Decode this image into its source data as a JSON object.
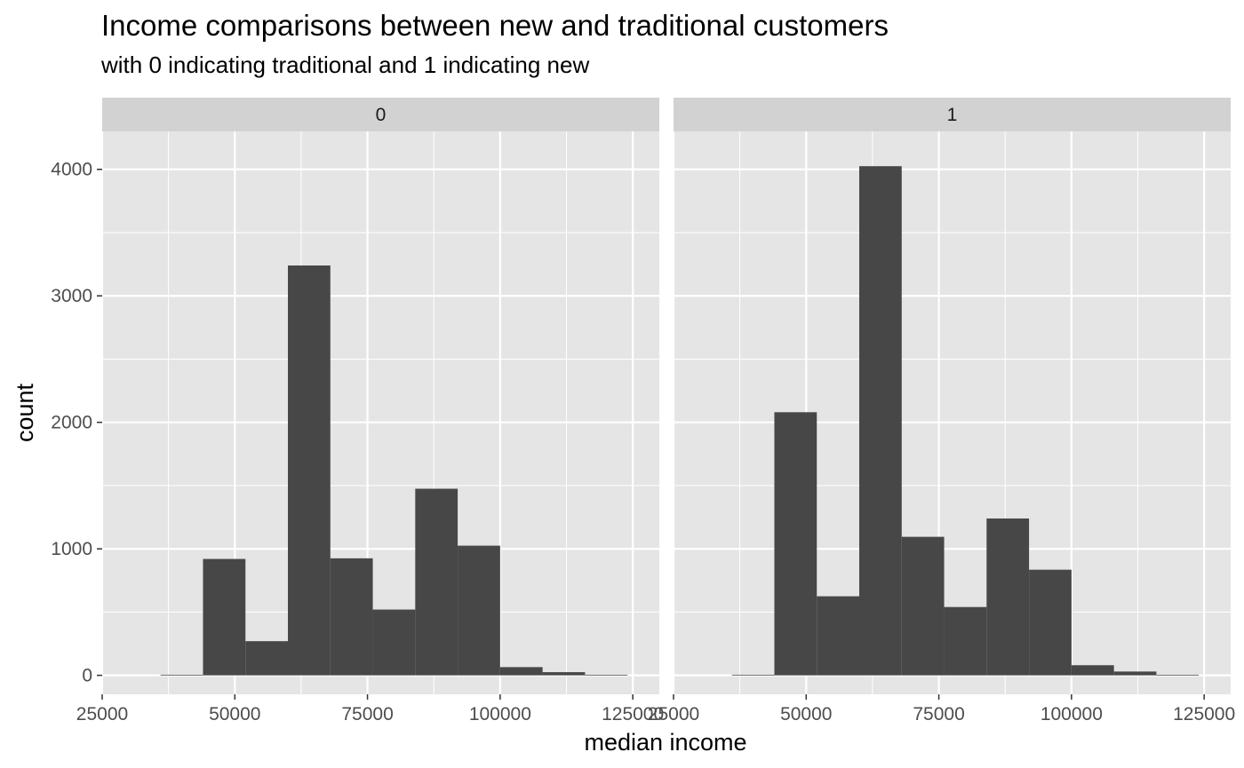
{
  "chart_data": {
    "type": "bar",
    "subtype": "faceted histogram",
    "title": "Income comparisons between new and traditional customers",
    "subtitle": "with 0 indicating traditional and 1 indicating new",
    "xlabel": "median income",
    "ylabel": "count",
    "xlim": [
      25000,
      130000
    ],
    "ylim": [
      -150,
      4300
    ],
    "x_ticks": [
      25000,
      50000,
      75000,
      100000,
      125000
    ],
    "x_tick_labels": [
      "25000",
      "50000",
      "75000",
      "100000",
      "125000"
    ],
    "y_ticks": [
      0,
      1000,
      2000,
      3000,
      4000
    ],
    "y_tick_labels": [
      "0",
      "1000",
      "2000",
      "3000",
      "4000"
    ],
    "grid": true,
    "colors": {
      "bar": "#474747",
      "panel_background": "#e5e5e5",
      "grid_line": "#ffffff",
      "strip_background": "#d2d2d2"
    },
    "bins": [
      [
        36000,
        44000
      ],
      [
        44000,
        52000
      ],
      [
        52000,
        60000
      ],
      [
        60000,
        68000
      ],
      [
        68000,
        76000
      ],
      [
        76000,
        84000
      ],
      [
        84000,
        92000
      ],
      [
        92000,
        100000
      ],
      [
        100000,
        108000
      ],
      [
        108000,
        116000
      ],
      [
        116000,
        124000
      ]
    ],
    "facets": [
      {
        "label": "0",
        "values": [
          5,
          920,
          270,
          3240,
          925,
          520,
          1475,
          1025,
          65,
          25,
          5
        ]
      },
      {
        "label": "1",
        "values": [
          5,
          2080,
          625,
          4025,
          1095,
          540,
          1240,
          835,
          80,
          30,
          5
        ]
      }
    ]
  }
}
